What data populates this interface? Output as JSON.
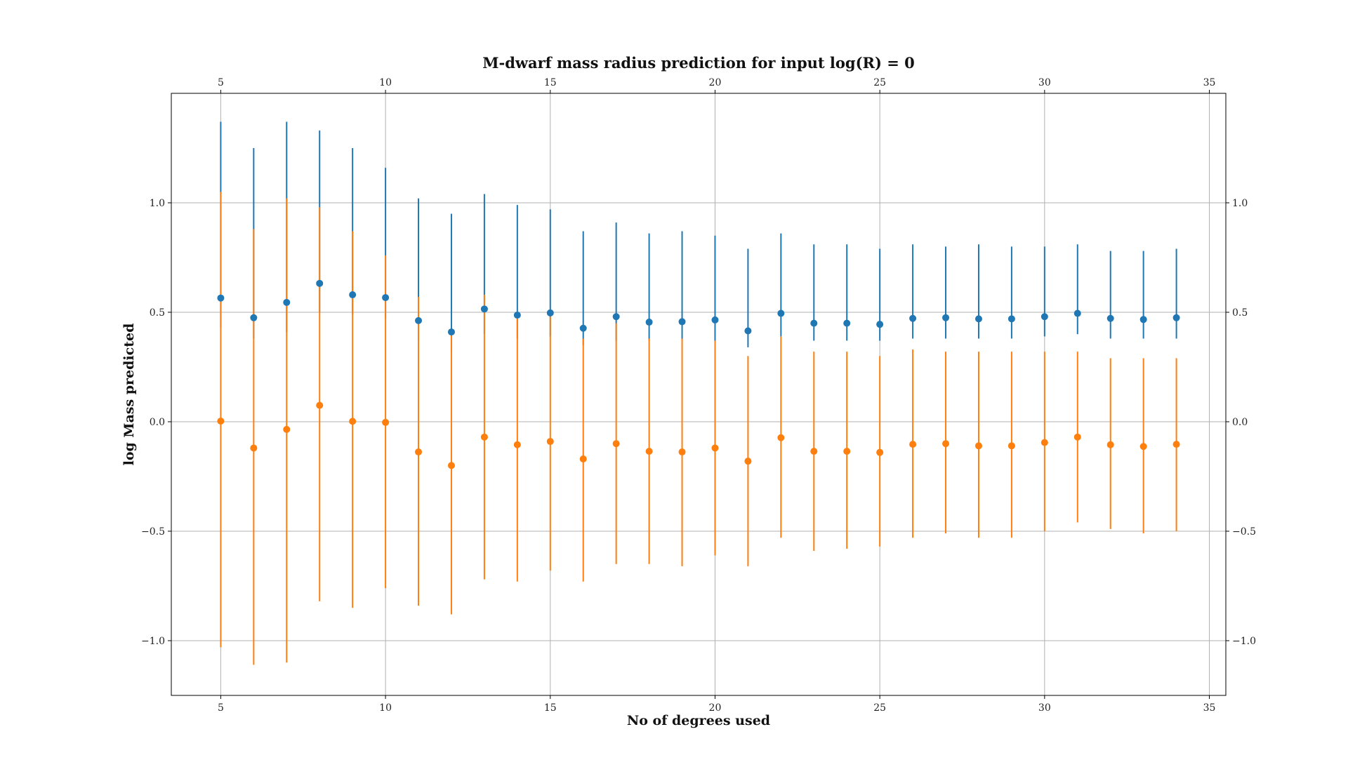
{
  "chart_data": {
    "type": "scatter",
    "title": "M-dwarf mass radius prediction for input log(R) = 0",
    "xlabel": "No of degrees used",
    "ylabel": "log Mass predicted",
    "xlim": [
      3.5,
      35.5
    ],
    "ylim": [
      -1.25,
      1.5
    ],
    "xticks": [
      5,
      10,
      15,
      20,
      25,
      30,
      35
    ],
    "yticks": [
      -1.0,
      -0.5,
      0.0,
      0.5,
      1.0
    ],
    "xtick_labels": [
      "5",
      "10",
      "15",
      "20",
      "25",
      "30",
      "35"
    ],
    "ytick_labels": [
      "−1.0",
      "−0.5",
      "0.0",
      "0.5",
      "1.0"
    ],
    "grid": true,
    "x": [
      5,
      6,
      7,
      8,
      9,
      10,
      11,
      12,
      13,
      14,
      15,
      16,
      17,
      18,
      19,
      20,
      21,
      22,
      23,
      24,
      25,
      26,
      27,
      28,
      29,
      30,
      31,
      32,
      33,
      34
    ],
    "series": [
      {
        "color": "#1f77b4",
        "values": [
          0.565,
          0.475,
          0.545,
          0.632,
          0.58,
          0.567,
          0.462,
          0.41,
          0.515,
          0.487,
          0.497,
          0.427,
          0.48,
          0.455,
          0.457,
          0.465,
          0.415,
          0.495,
          0.45,
          0.45,
          0.445,
          0.472,
          0.475,
          0.47,
          0.47,
          0.48,
          0.495,
          0.472,
          0.467,
          0.475
        ],
        "upper": [
          1.37,
          1.25,
          1.37,
          1.33,
          1.25,
          1.16,
          1.02,
          0.95,
          1.04,
          0.99,
          0.97,
          0.87,
          0.91,
          0.86,
          0.87,
          0.85,
          0.79,
          0.86,
          0.81,
          0.81,
          0.79,
          0.81,
          0.8,
          0.81,
          0.8,
          0.8,
          0.81,
          0.78,
          0.78,
          0.79
        ],
        "lower": [
          0.43,
          0.38,
          0.41,
          0.5,
          0.49,
          0.47,
          0.37,
          0.32,
          0.4,
          0.38,
          0.39,
          0.35,
          0.37,
          0.37,
          0.37,
          0.37,
          0.34,
          0.39,
          0.37,
          0.37,
          0.37,
          0.38,
          0.38,
          0.38,
          0.38,
          0.39,
          0.4,
          0.38,
          0.38,
          0.38
        ]
      },
      {
        "color": "#ff7f0e",
        "values": [
          0.003,
          -0.12,
          -0.035,
          0.075,
          0.002,
          -0.003,
          -0.138,
          -0.2,
          -0.07,
          -0.105,
          -0.09,
          -0.17,
          -0.1,
          -0.135,
          -0.138,
          -0.12,
          -0.18,
          -0.073,
          -0.135,
          -0.135,
          -0.14,
          -0.103,
          -0.1,
          -0.11,
          -0.11,
          -0.095,
          -0.07,
          -0.105,
          -0.113,
          -0.103
        ],
        "upper": [
          1.05,
          0.88,
          1.02,
          0.98,
          0.87,
          0.76,
          0.57,
          0.4,
          0.58,
          0.49,
          0.48,
          0.38,
          0.45,
          0.38,
          0.38,
          0.37,
          0.3,
          0.39,
          0.32,
          0.32,
          0.3,
          0.33,
          0.32,
          0.32,
          0.32,
          0.32,
          0.32,
          0.29,
          0.29,
          0.29
        ],
        "lower": [
          -1.03,
          -1.11,
          -1.1,
          -0.82,
          -0.85,
          -0.76,
          -0.84,
          -0.88,
          -0.72,
          -0.73,
          -0.68,
          -0.73,
          -0.65,
          -0.65,
          -0.66,
          -0.61,
          -0.66,
          -0.53,
          -0.59,
          -0.58,
          -0.57,
          -0.53,
          -0.51,
          -0.53,
          -0.53,
          -0.5,
          -0.46,
          -0.49,
          -0.51,
          -0.5
        ]
      }
    ]
  }
}
